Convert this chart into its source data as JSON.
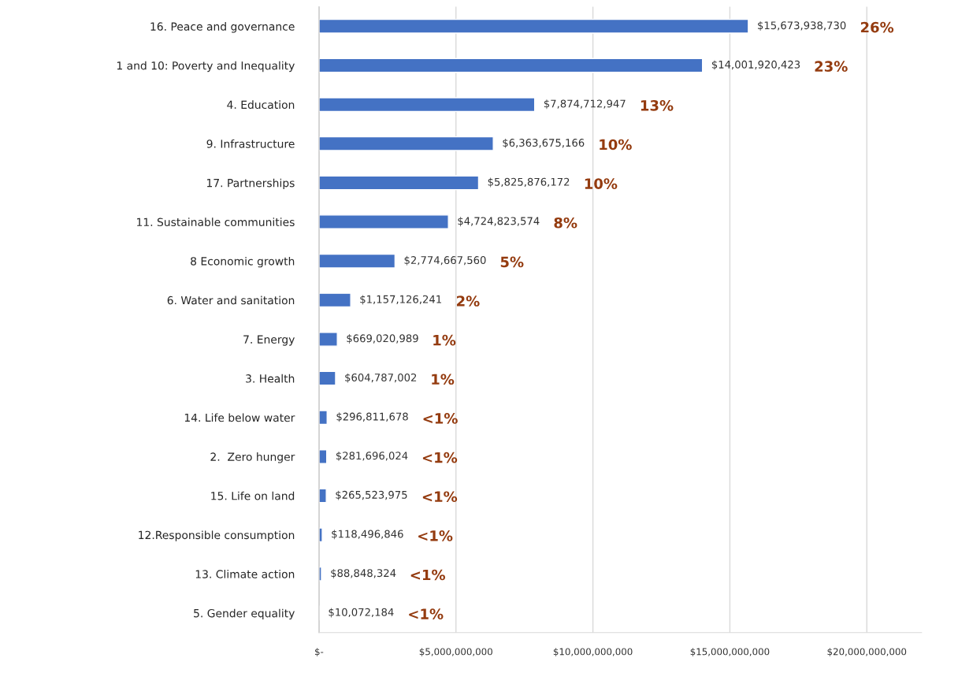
{
  "chart_data": {
    "type": "bar",
    "orientation": "horizontal",
    "categories": [
      "16. Peace and governance",
      "1 and 10: Poverty and Inequality",
      "4. Education",
      "9. Infrastructure",
      "17. Partnerships",
      "11. Sustainable communities",
      "8 Economic growth",
      "6. Water and sanitation",
      "7. Energy",
      "3. Health",
      "14. Life below water",
      "2.  Zero hunger",
      "15. Life on land",
      "12.Responsible consumption",
      "13. Climate action",
      "5. Gender equality"
    ],
    "values": [
      15673938730,
      14001920423,
      7874712947,
      6363675166,
      5825876172,
      4724823574,
      2774667560,
      1157126241,
      669020989,
      604787002,
      296811678,
      281696024,
      265523975,
      118496846,
      88848324,
      10072184
    ],
    "value_labels": [
      "$15,673,938,730",
      "$14,001,920,423",
      "$7,874,712,947",
      "$6,363,675,166",
      "$5,825,876,172",
      "$4,724,823,574",
      "$2,774,667,560",
      "$1,157,126,241",
      "$669,020,989",
      "$604,787,002",
      "$296,811,678",
      "$281,696,024",
      "$265,523,975",
      "$118,496,846",
      "$88,848,324",
      "$10,072,184"
    ],
    "color": "#4472c4",
    "xlim": [
      0,
      22000000000
    ],
    "xticks": [
      {
        "value": 0,
        "label": "$-"
      },
      {
        "value": 5000000000,
        "label": "$5,000,000,000"
      },
      {
        "value": 10000000000,
        "label": "$10,000,000,000"
      },
      {
        "value": 15000000000,
        "label": "$15,000,000,000"
      },
      {
        "value": 20000000000,
        "label": "$20,000,000,000"
      }
    ],
    "grid": "x",
    "annotations": [
      "26%",
      "23%",
      "13%",
      "10%",
      "10%",
      "8%",
      "5%",
      "2%",
      "1%",
      "1%",
      "<1%",
      "<1%",
      "<1%",
      "<1%",
      "<1%",
      "<1%"
    ]
  }
}
